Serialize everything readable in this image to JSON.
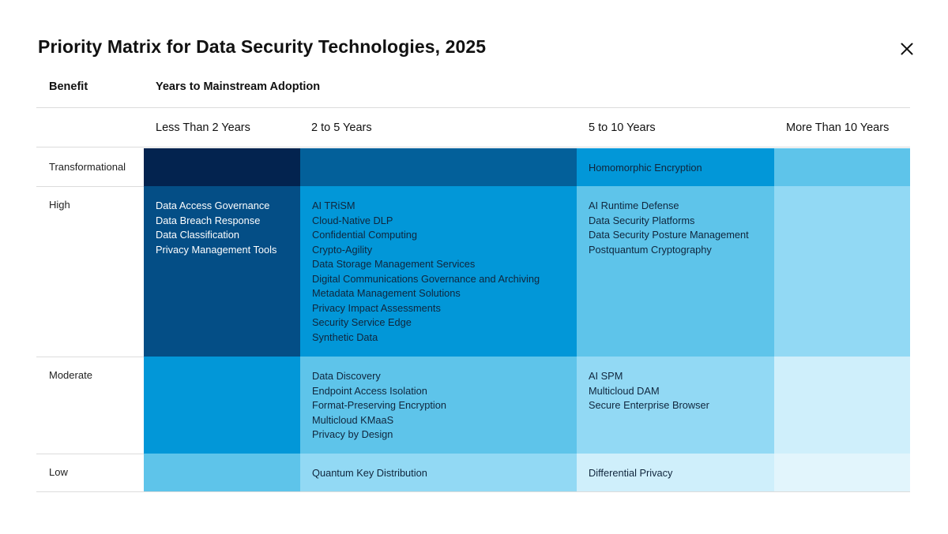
{
  "title": "Priority Matrix for Data Security Technologies, 2025",
  "headers": {
    "benefit": "Benefit",
    "adoption": "Years to Mainstream Adoption"
  },
  "columns": [
    "Less Than 2 Years",
    "2 to 5 Years",
    "5 to 10 Years",
    "More Than 10 Years"
  ],
  "rows": [
    {
      "label": "Transformational",
      "cells": [
        {
          "color": "#03234f",
          "items": []
        },
        {
          "color": "#03609a",
          "items": []
        },
        {
          "color": "#0297d8",
          "items": [
            "Homomorphic Encryption"
          ]
        },
        {
          "color": "#5ec4ea",
          "items": []
        }
      ]
    },
    {
      "label": "High",
      "cells": [
        {
          "color": "#044e86",
          "items": [
            "Data Access Governance",
            "Data Breach Response",
            "Data Classification",
            "Privacy Management Tools"
          ]
        },
        {
          "color": "#0297d8",
          "items": [
            "AI TRiSM",
            "Cloud-Native DLP",
            "Confidential Computing",
            "Crypto-Agility",
            "Data Storage Management Services",
            "Digital Communications Governance and Archiving",
            "Metadata Management Solutions",
            "Privacy Impact Assessments",
            "Security Service Edge",
            "Synthetic Data"
          ]
        },
        {
          "color": "#5ec4ea",
          "items": [
            "AI Runtime Defense",
            "Data Security Platforms",
            "Data Security Posture Management",
            "Postquantum Cryptography"
          ]
        },
        {
          "color": "#92d9f4",
          "items": []
        }
      ]
    },
    {
      "label": "Moderate",
      "cells": [
        {
          "color": "#0297d8",
          "items": []
        },
        {
          "color": "#5ec4ea",
          "items": [
            "Data Discovery",
            "Endpoint Access Isolation",
            "Format-Preserving Encryption",
            "Multicloud KMaaS",
            "Privacy by Design"
          ]
        },
        {
          "color": "#92d9f4",
          "items": [
            "AI SPM",
            "Multicloud DAM",
            "Secure Enterprise Browser"
          ]
        },
        {
          "color": "#cfeffb",
          "items": []
        }
      ]
    },
    {
      "label": "Low",
      "cells": [
        {
          "color": "#5ec4ea",
          "items": []
        },
        {
          "color": "#92d9f4",
          "items": [
            "Quantum Key Distribution"
          ]
        },
        {
          "color": "#cfeffb",
          "items": [
            "Differential Privacy"
          ]
        },
        {
          "color": "#e2f5fc",
          "items": []
        }
      ]
    }
  ]
}
